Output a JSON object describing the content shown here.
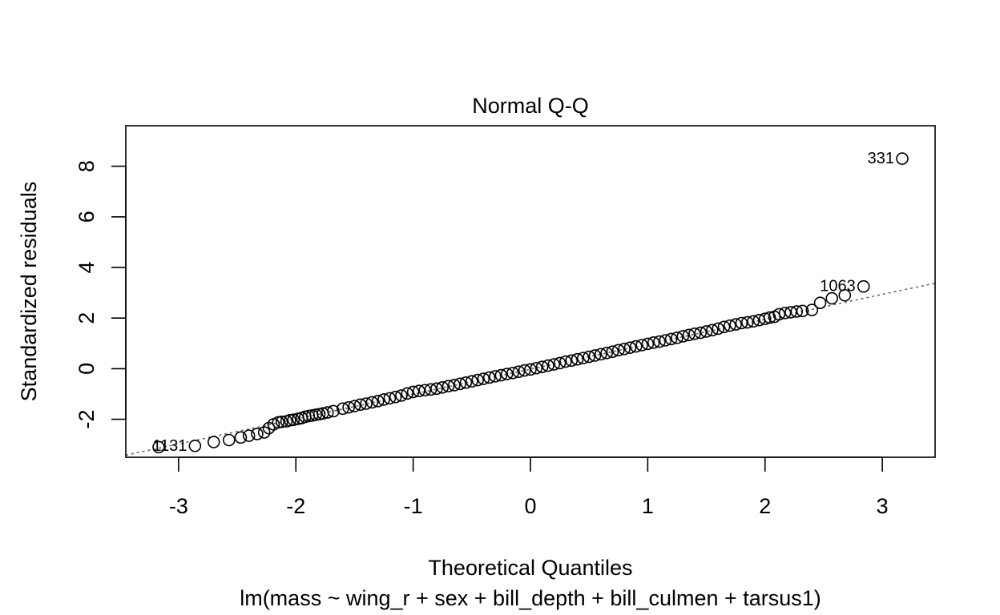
{
  "chart_data": {
    "type": "scatter",
    "title": "Normal Q-Q",
    "xlabel": "Theoretical Quantiles",
    "ylabel": "Standardized residuals",
    "subtitle": "lm(mass ~ wing_r + sex + bill_depth + bill_culmen + tarsus1)",
    "xlim": [
      -3.45,
      3.45
    ],
    "ylim": [
      -3.5,
      9.6
    ],
    "xticks": [
      -3,
      -2,
      -1,
      0,
      1,
      2,
      3
    ],
    "xtick_labels": [
      "-3",
      "-2",
      "-1",
      "0",
      "1",
      "2",
      "3"
    ],
    "yticks": [
      -2,
      0,
      2,
      4,
      6,
      8
    ],
    "ytick_labels": [
      "-2",
      "0",
      "2",
      "4",
      "6",
      "8"
    ],
    "reference_line": {
      "slope": 0.985,
      "intercept": -0.02,
      "style": "dotted",
      "color": "#666666"
    },
    "grid": false,
    "labeled_points": [
      {
        "label": "331",
        "x": 3.17,
        "y": 8.3
      },
      {
        "label": "1063",
        "x": 2.84,
        "y": 3.25
      },
      {
        "label": "1131",
        "x": -2.86,
        "y": -3.05
      }
    ],
    "series": [
      {
        "values": [
          [
            -3.17,
            -3.1
          ],
          [
            -2.86,
            -3.05
          ],
          [
            -2.7,
            -2.9
          ],
          [
            -2.57,
            -2.82
          ],
          [
            -2.47,
            -2.72
          ],
          [
            -2.4,
            -2.65
          ],
          [
            -2.33,
            -2.58
          ],
          [
            -2.27,
            -2.52
          ],
          [
            -2.23,
            -2.35
          ],
          [
            -2.19,
            -2.2
          ],
          [
            -2.15,
            -2.12
          ],
          [
            -2.12,
            -2.1
          ],
          [
            -2.08,
            -2.08
          ],
          [
            -2.05,
            -2.04
          ],
          [
            -2.02,
            -2.02
          ],
          [
            -1.98,
            -1.98
          ],
          [
            -1.95,
            -1.95
          ],
          [
            -1.92,
            -1.9
          ],
          [
            -1.89,
            -1.87
          ],
          [
            -1.86,
            -1.85
          ],
          [
            -1.83,
            -1.82
          ],
          [
            -1.8,
            -1.8
          ],
          [
            -1.77,
            -1.77
          ],
          [
            -1.73,
            -1.73
          ],
          [
            -1.68,
            -1.68
          ],
          [
            -1.6,
            -1.58
          ],
          [
            -1.55,
            -1.53
          ],
          [
            -1.5,
            -1.48
          ],
          [
            -1.45,
            -1.42
          ],
          [
            -1.4,
            -1.38
          ],
          [
            -1.35,
            -1.33
          ],
          [
            -1.3,
            -1.28
          ],
          [
            -1.25,
            -1.22
          ],
          [
            -1.2,
            -1.17
          ],
          [
            -1.15,
            -1.12
          ],
          [
            -1.1,
            -1.06
          ],
          [
            -1.05,
            -0.98
          ],
          [
            -1.0,
            -0.92
          ],
          [
            -0.95,
            -0.88
          ],
          [
            -0.9,
            -0.85
          ],
          [
            -0.85,
            -0.82
          ],
          [
            -0.8,
            -0.79
          ],
          [
            -0.75,
            -0.74
          ],
          [
            -0.7,
            -0.69
          ],
          [
            -0.65,
            -0.65
          ],
          [
            -0.6,
            -0.6
          ],
          [
            -0.55,
            -0.55
          ],
          [
            -0.5,
            -0.5
          ],
          [
            -0.45,
            -0.45
          ],
          [
            -0.4,
            -0.4
          ],
          [
            -0.35,
            -0.35
          ],
          [
            -0.3,
            -0.3
          ],
          [
            -0.25,
            -0.26
          ],
          [
            -0.2,
            -0.21
          ],
          [
            -0.15,
            -0.17
          ],
          [
            -0.1,
            -0.12
          ],
          [
            -0.05,
            -0.07
          ],
          [
            0.0,
            -0.03
          ],
          [
            0.05,
            0.02
          ],
          [
            0.1,
            0.07
          ],
          [
            0.15,
            0.12
          ],
          [
            0.2,
            0.17
          ],
          [
            0.25,
            0.22
          ],
          [
            0.3,
            0.28
          ],
          [
            0.35,
            0.32
          ],
          [
            0.4,
            0.37
          ],
          [
            0.45,
            0.42
          ],
          [
            0.5,
            0.47
          ],
          [
            0.55,
            0.52
          ],
          [
            0.6,
            0.57
          ],
          [
            0.65,
            0.62
          ],
          [
            0.7,
            0.67
          ],
          [
            0.75,
            0.73
          ],
          [
            0.8,
            0.78
          ],
          [
            0.85,
            0.83
          ],
          [
            0.9,
            0.88
          ],
          [
            0.95,
            0.93
          ],
          [
            1.0,
            0.98
          ],
          [
            1.05,
            1.03
          ],
          [
            1.1,
            1.07
          ],
          [
            1.15,
            1.12
          ],
          [
            1.2,
            1.17
          ],
          [
            1.25,
            1.22
          ],
          [
            1.3,
            1.28
          ],
          [
            1.35,
            1.33
          ],
          [
            1.4,
            1.38
          ],
          [
            1.45,
            1.42
          ],
          [
            1.5,
            1.47
          ],
          [
            1.55,
            1.52
          ],
          [
            1.6,
            1.58
          ],
          [
            1.65,
            1.65
          ],
          [
            1.7,
            1.7
          ],
          [
            1.75,
            1.75
          ],
          [
            1.8,
            1.8
          ],
          [
            1.85,
            1.83
          ],
          [
            1.9,
            1.87
          ],
          [
            1.95,
            1.92
          ],
          [
            2.0,
            1.97
          ],
          [
            2.04,
            2.02
          ],
          [
            2.08,
            2.05
          ],
          [
            2.12,
            2.15
          ],
          [
            2.17,
            2.2
          ],
          [
            2.22,
            2.23
          ],
          [
            2.27,
            2.26
          ],
          [
            2.32,
            2.28
          ],
          [
            2.4,
            2.32
          ],
          [
            2.47,
            2.6
          ],
          [
            2.57,
            2.78
          ],
          [
            2.68,
            2.9
          ],
          [
            2.84,
            3.25
          ],
          [
            3.17,
            8.3
          ]
        ]
      }
    ]
  }
}
